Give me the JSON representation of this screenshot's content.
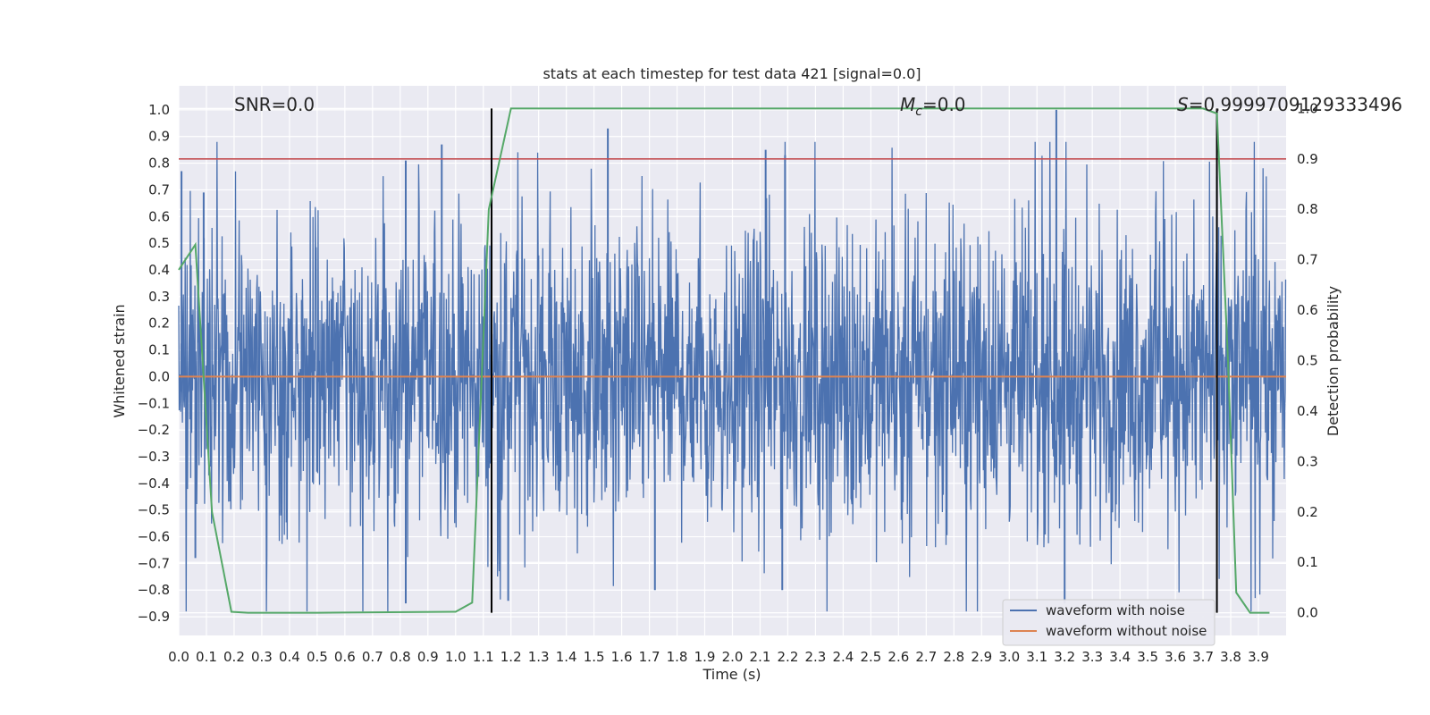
{
  "chart_data": {
    "type": "line",
    "title": "stats at each timestep for test data 421 [signal=0.0]",
    "xlabel": "Time (s)",
    "ylabel_left": "Whitened strain",
    "ylabel_right": "Detection probability",
    "xlim": [
      0.0,
      4.0
    ],
    "ylim_left": [
      -0.97,
      1.09
    ],
    "ylim_right": [
      -0.045,
      1.045
    ],
    "x_ticks": [
      "0.0",
      "0.1",
      "0.2",
      "0.3",
      "0.4",
      "0.5",
      "0.6",
      "0.7",
      "0.8",
      "0.9",
      "1.0",
      "1.1",
      "1.2",
      "1.3",
      "1.4",
      "1.5",
      "1.6",
      "1.7",
      "1.8",
      "1.9",
      "2.0",
      "2.1",
      "2.2",
      "2.3",
      "2.4",
      "2.5",
      "2.6",
      "2.7",
      "2.8",
      "2.9",
      "3.0",
      "3.1",
      "3.2",
      "3.3",
      "3.4",
      "3.5",
      "3.6",
      "3.7",
      "3.8",
      "3.9"
    ],
    "y_ticks_left": [
      "1.0",
      "0.9",
      "0.8",
      "0.7",
      "0.6",
      "0.5",
      "0.4",
      "0.3",
      "0.2",
      "0.1",
      "0.0",
      "−0.1",
      "−0.2",
      "−0.3",
      "−0.4",
      "−0.5",
      "−0.6",
      "−0.7",
      "−0.8",
      "−0.9"
    ],
    "y_ticks_right": [
      "1.0",
      "0.9",
      "0.8",
      "0.7",
      "0.6",
      "0.5",
      "0.4",
      "0.3",
      "0.2",
      "0.1",
      "0.0"
    ],
    "annotations": {
      "snr": "SNR=0.0",
      "mc": "=0.0",
      "mc_symbol": "M",
      "mc_subscript": "c",
      "s": "=0.9999709129333496",
      "s_symbol": "S"
    },
    "threshold_line": {
      "axis": "right",
      "y": 0.9,
      "color": "#c44e52"
    },
    "vertical_markers": [
      {
        "x": 1.13,
        "y_from": 0.0,
        "y_to": 1.0,
        "color": "#000000"
      },
      {
        "x": 3.75,
        "y_from": 0.0,
        "y_to": 1.0,
        "color": "#000000"
      }
    ],
    "series": [
      {
        "name": "waveform with noise",
        "axis": "left",
        "color": "#4c72b0",
        "style": "noise",
        "spikes": [
          {
            "x": 0.01,
            "y": 0.77
          },
          {
            "x": 0.09,
            "y": 0.69
          },
          {
            "x": 0.06,
            "y": -0.68
          },
          {
            "x": 0.82,
            "y": 0.81
          },
          {
            "x": 0.82,
            "y": -0.85
          },
          {
            "x": 0.95,
            "y": 0.87
          },
          {
            "x": 1.19,
            "y": -0.84
          },
          {
            "x": 1.55,
            "y": 0.93
          },
          {
            "x": 1.72,
            "y": -0.8
          },
          {
            "x": 2.12,
            "y": 0.85
          },
          {
            "x": 2.19,
            "y": 0.83
          },
          {
            "x": 2.18,
            "y": -0.8
          },
          {
            "x": 3.17,
            "y": 1.0
          },
          {
            "x": 3.2,
            "y": -0.85
          },
          {
            "x": 3.75,
            "y": 0.75
          }
        ]
      },
      {
        "name": "waveform without noise",
        "axis": "left",
        "color": "#dd8452",
        "x": [
          0.0,
          4.0
        ],
        "y": [
          0.0,
          0.0
        ]
      },
      {
        "name": "detection probability",
        "axis": "right",
        "color": "#55a868",
        "x": [
          0.0,
          0.06,
          0.12,
          0.19,
          0.25,
          0.5,
          1.0,
          1.06,
          1.12,
          1.2,
          1.5,
          2.0,
          2.5,
          3.0,
          3.5,
          3.7,
          3.75,
          3.79,
          3.82,
          3.87,
          3.94
        ],
        "y": [
          0.68,
          0.73,
          0.2,
          0.002,
          0.0,
          0.0,
          0.002,
          0.02,
          0.8,
          1.0,
          1.0,
          1.0,
          1.0,
          1.0,
          1.0,
          1.0,
          0.99,
          0.5,
          0.04,
          0.0,
          0.0
        ]
      }
    ],
    "grid": true,
    "legend": {
      "position": "bottom-right",
      "entries": [
        "waveform with noise",
        "waveform without noise"
      ]
    },
    "colors": {
      "background": "#eaeaf2",
      "grid": "#ffffff"
    }
  }
}
